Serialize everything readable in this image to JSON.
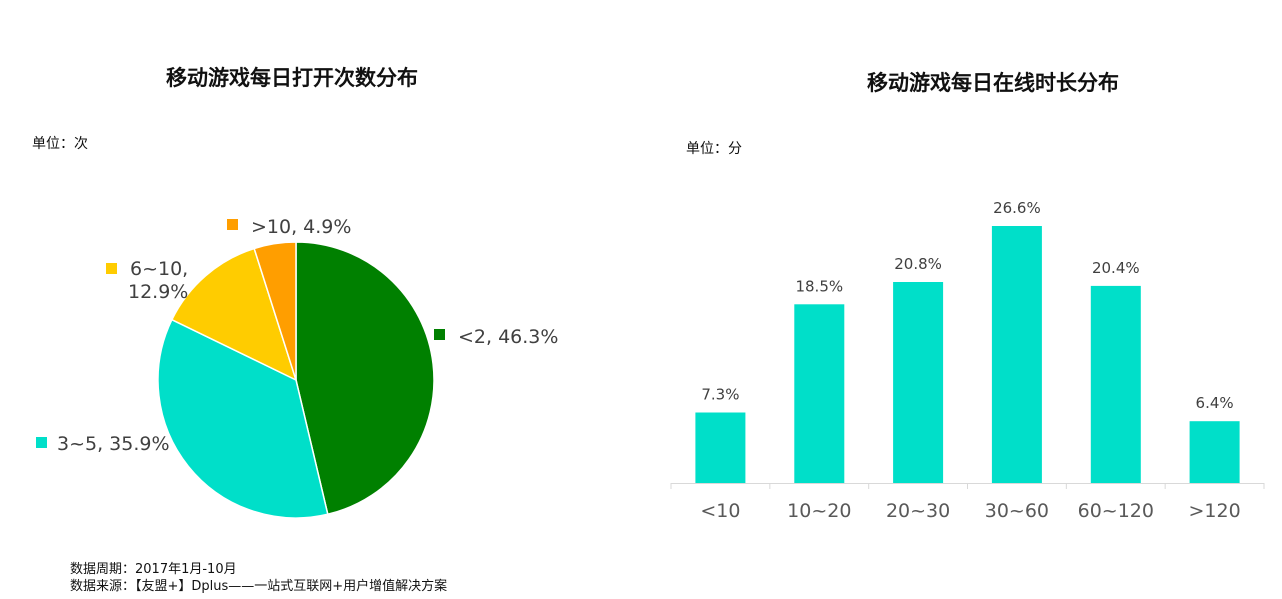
{
  "left": {
    "title": "移动游戏每日打开次数分布",
    "unit": "单位：次"
  },
  "right": {
    "title": "移动游戏每日在线时长分布",
    "unit": "单位：分"
  },
  "footer": {
    "period": "数据周期：2017年1月-10月",
    "source": "数据来源：【友盟+】Dplus——一站式互联网+用户增值解决方案"
  },
  "chart_data": [
    {
      "type": "pie",
      "title": "移动游戏每日打开次数分布",
      "slices": [
        {
          "label": "<2, 46.3%",
          "value": 46.3,
          "color": "#008000"
        },
        {
          "label": "3~5, 35.9%",
          "value": 35.9,
          "color": "#00DFC9"
        },
        {
          "label": "6~10, 12.9%",
          "value": 12.9,
          "color": "#FFCC00"
        },
        {
          "label": ">10, 4.9%",
          "value": 4.9,
          "color": "#FF9E00"
        }
      ]
    },
    {
      "type": "bar",
      "title": "移动游戏每日在线时长分布",
      "categories": [
        "<10",
        "10~20",
        "20~30",
        "30~60",
        "60~120",
        ">120"
      ],
      "values": [
        7.3,
        18.5,
        20.8,
        26.6,
        20.4,
        6.4
      ],
      "value_labels": [
        "7.3%",
        "18.5%",
        "20.8%",
        "26.6%",
        "20.4%",
        "6.4%"
      ],
      "color": "#00DFC9",
      "ylim": [
        0,
        26.6
      ],
      "grid": false
    }
  ]
}
